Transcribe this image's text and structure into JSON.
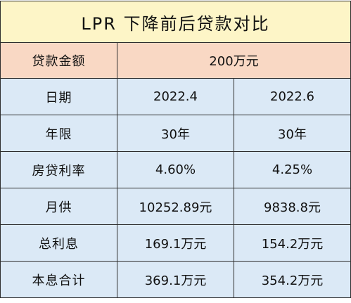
{
  "table": {
    "title": "LPR 下降前后贷款对比",
    "amount_label": "贷款金额",
    "amount_value": "200万元",
    "rows": [
      {
        "label": "日期",
        "before": "2022.4",
        "after": "2022.6"
      },
      {
        "label": "年限",
        "before": "30年",
        "after": "30年"
      },
      {
        "label": "房贷利率",
        "before": "4.60%",
        "after": "4.25%"
      },
      {
        "label": "月供",
        "before": "10252.89元",
        "after": "9838.8元"
      },
      {
        "label": "总利息",
        "before": "169.1万元",
        "after": "154.2万元"
      },
      {
        "label": "本息合计",
        "before": "369.1万元",
        "after": "354.2万元"
      }
    ]
  },
  "colors": {
    "title_bg": "#fdf5c7",
    "amount_bg": "#f9d8c4",
    "data_bg": "#dbe9f6",
    "border": "#2d2d2d"
  }
}
